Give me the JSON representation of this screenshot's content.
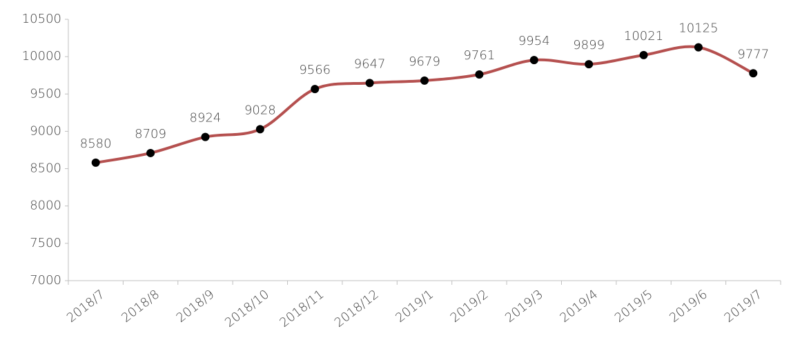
{
  "chart_data": {
    "type": "line",
    "categories": [
      "2018/7",
      "2018/8",
      "2018/9",
      "2018/10",
      "2018/11",
      "2018/12",
      "2019/1",
      "2019/2",
      "2019/3",
      "2019/4",
      "2019/5",
      "2019/6",
      "2019/7"
    ],
    "values": [
      8580,
      8709,
      8924,
      9028,
      9566,
      9647,
      9679,
      9761,
      9954,
      9899,
      10021,
      10125,
      9777
    ],
    "color": "#b5504f",
    "marker_color": "#000000",
    "ylim": [
      7000,
      10500
    ],
    "yticks": [
      7000,
      7500,
      8000,
      8500,
      9000,
      9500,
      10000,
      10500
    ],
    "grid": false,
    "smooth": true
  }
}
